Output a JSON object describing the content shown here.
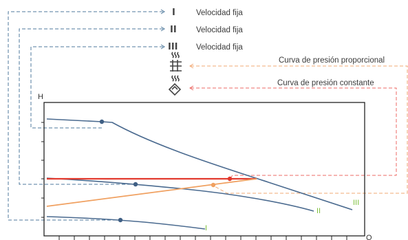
{
  "legend": {
    "speed_1": {
      "symbol": "I",
      "label": "Velocidad fija"
    },
    "speed_2": {
      "symbol": "II",
      "label": "Velocidad fija"
    },
    "speed_3": {
      "symbol": "III",
      "label": "Velocidad fija"
    },
    "proportional": {
      "label": "Curva de presión proporcional",
      "icon": "proportional-pressure-icon"
    },
    "constant": {
      "label": "Curva de presión constante",
      "icon": "constant-pressure-icon"
    }
  },
  "axes": {
    "y_label": "H",
    "x_label": "Q"
  },
  "curve_tags": {
    "speed_1": "I",
    "speed_2": "II",
    "speed_3": "III"
  },
  "colors": {
    "blue_curve": "#4a6a8f",
    "red_curve": "#e23a2e",
    "orange_curve": "#f0a060",
    "green_tag": "#7cbf3a",
    "blue_dash": "#4f7a9c",
    "red_dash": "#ec6a64",
    "orange_dash": "#f2a873"
  }
}
